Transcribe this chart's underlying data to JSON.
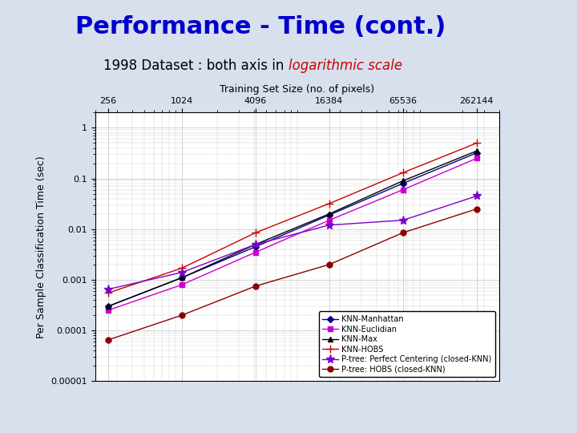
{
  "title": "Performance - Time (cont.)",
  "subtitle_black": "1998 Dataset : both axis in ",
  "subtitle_red": "logarithmic scale",
  "xlabel": "Training Set Size (no. of pixels)",
  "ylabel": "Per Sample Classification Time (sec)",
  "x_values": [
    256,
    1024,
    4096,
    16384,
    65536,
    262144
  ],
  "series": [
    {
      "label": "KNN-Manhattan",
      "color": "#00008B",
      "marker": "D",
      "markersize": 4,
      "linestyle": "-",
      "y_values": [
        0.0003,
        0.0011,
        0.0045,
        0.019,
        0.08,
        0.32
      ]
    },
    {
      "label": "KNN-Euclidian",
      "color": "#CC00CC",
      "marker": "s",
      "markersize": 4,
      "linestyle": "-",
      "y_values": [
        0.00025,
        0.0008,
        0.0035,
        0.015,
        0.06,
        0.25
      ]
    },
    {
      "label": "KNN-Max",
      "color": "#000000",
      "marker": "^",
      "markersize": 5,
      "linestyle": "-",
      "y_values": [
        0.0003,
        0.0011,
        0.005,
        0.02,
        0.09,
        0.35
      ]
    },
    {
      "label": "KNN-HOBS",
      "color": "#CC0000",
      "marker": "+",
      "markersize": 7,
      "linestyle": "-",
      "y_values": [
        0.00055,
        0.0017,
        0.0085,
        0.032,
        0.13,
        0.5
      ]
    },
    {
      "label": "P-tree: Perfect Centering (closed-KNN)",
      "color": "#7B00CC",
      "marker": "*",
      "markersize": 8,
      "linestyle": "-",
      "y_values": [
        0.00065,
        0.0014,
        0.005,
        0.012,
        0.015,
        0.045
      ]
    },
    {
      "label": "P-tree: HOBS (closed-KNN)",
      "color": "#8B0000",
      "marker": "o",
      "markersize": 5,
      "linestyle": "-",
      "y_values": [
        6.5e-05,
        0.0002,
        0.00075,
        0.002,
        0.0085,
        0.025
      ]
    }
  ],
  "xlim": [
    200,
    400000
  ],
  "ylim": [
    1e-05,
    2.0
  ],
  "background_color": "#D8E0EE",
  "plot_bg_color": "#FFFFFF",
  "grid_color": "#CCCCCC",
  "title_color": "#0000CC",
  "title_fontsize": 22,
  "subtitle_fontsize": 12,
  "axis_label_fontsize": 9,
  "tick_fontsize": 8
}
